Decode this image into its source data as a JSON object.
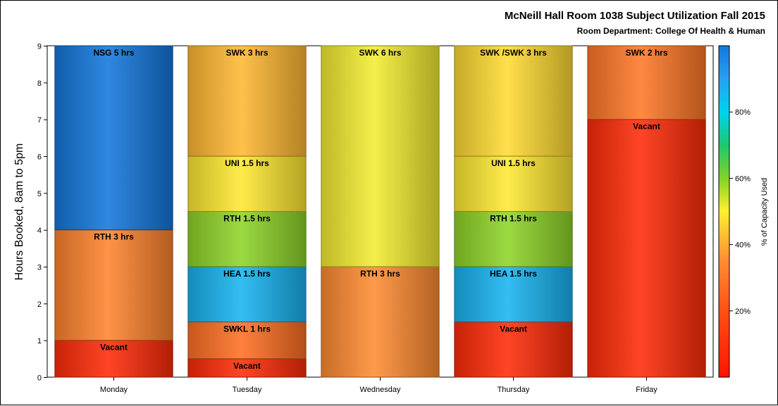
{
  "chart_data": {
    "type": "bar",
    "stacked": true,
    "title": "McNeill Hall Room 1038 Subject Utilization Fall 2015",
    "subtitle": "Room Department:  College Of Health & Human",
    "ylabel": "Hours Booked, 8am to 5pm",
    "xlabel": "",
    "ylim": [
      0,
      9
    ],
    "yticks": [
      0,
      1,
      2,
      3,
      4,
      5,
      6,
      7,
      8,
      9
    ],
    "categories": [
      "Monday",
      "Tuesday",
      "Wednesday",
      "Thursday",
      "Friday"
    ],
    "grid": false,
    "colorbar": {
      "label": "% of Capacity Used",
      "ticks": [
        "20%",
        "40%",
        "60%",
        "80%"
      ],
      "tick_values": [
        20,
        40,
        60,
        80
      ],
      "range": [
        0,
        100
      ]
    },
    "stacks": [
      {
        "category": "Monday",
        "segments": [
          {
            "label": "Vacant",
            "value": 1,
            "pct": 8
          },
          {
            "label": "RTH 3 hrs",
            "value": 3,
            "pct": 33
          },
          {
            "label": "NSG 5 hrs",
            "value": 5,
            "pct": 100
          }
        ]
      },
      {
        "category": "Tuesday",
        "segments": [
          {
            "label": "Vacant",
            "value": 0.5,
            "pct": 8
          },
          {
            "label": "SWKL 1 hrs",
            "value": 1,
            "pct": 28
          },
          {
            "label": "HEA 1.5 hrs",
            "value": 1.5,
            "pct": 86
          },
          {
            "label": "RTH 1.5 hrs",
            "value": 1.5,
            "pct": 59
          },
          {
            "label": "UNI 1.5 hrs",
            "value": 1.5,
            "pct": 49
          },
          {
            "label": "SWK 3 hrs",
            "value": 3,
            "pct": 42
          }
        ]
      },
      {
        "category": "Wednesday",
        "segments": [
          {
            "label": "RTH 3 hrs",
            "value": 3,
            "pct": 35
          },
          {
            "label": "SWK 6 hrs",
            "value": 6,
            "pct": 51
          }
        ]
      },
      {
        "category": "Thursday",
        "segments": [
          {
            "label": "Vacant",
            "value": 1.5,
            "pct": 8
          },
          {
            "label": "HEA 1.5 hrs",
            "value": 1.5,
            "pct": 86
          },
          {
            "label": "RTH 1.5 hrs",
            "value": 1.5,
            "pct": 59
          },
          {
            "label": "UNI 1.5 hrs",
            "value": 1.5,
            "pct": 49
          },
          {
            "label": "SWK /SWK 3 hrs",
            "value": 3,
            "pct": 47
          }
        ]
      },
      {
        "category": "Friday",
        "segments": [
          {
            "label": "Vacant",
            "value": 7,
            "pct": 8
          },
          {
            "label": "SWK 2 hrs",
            "value": 2,
            "pct": 30
          }
        ]
      }
    ]
  }
}
